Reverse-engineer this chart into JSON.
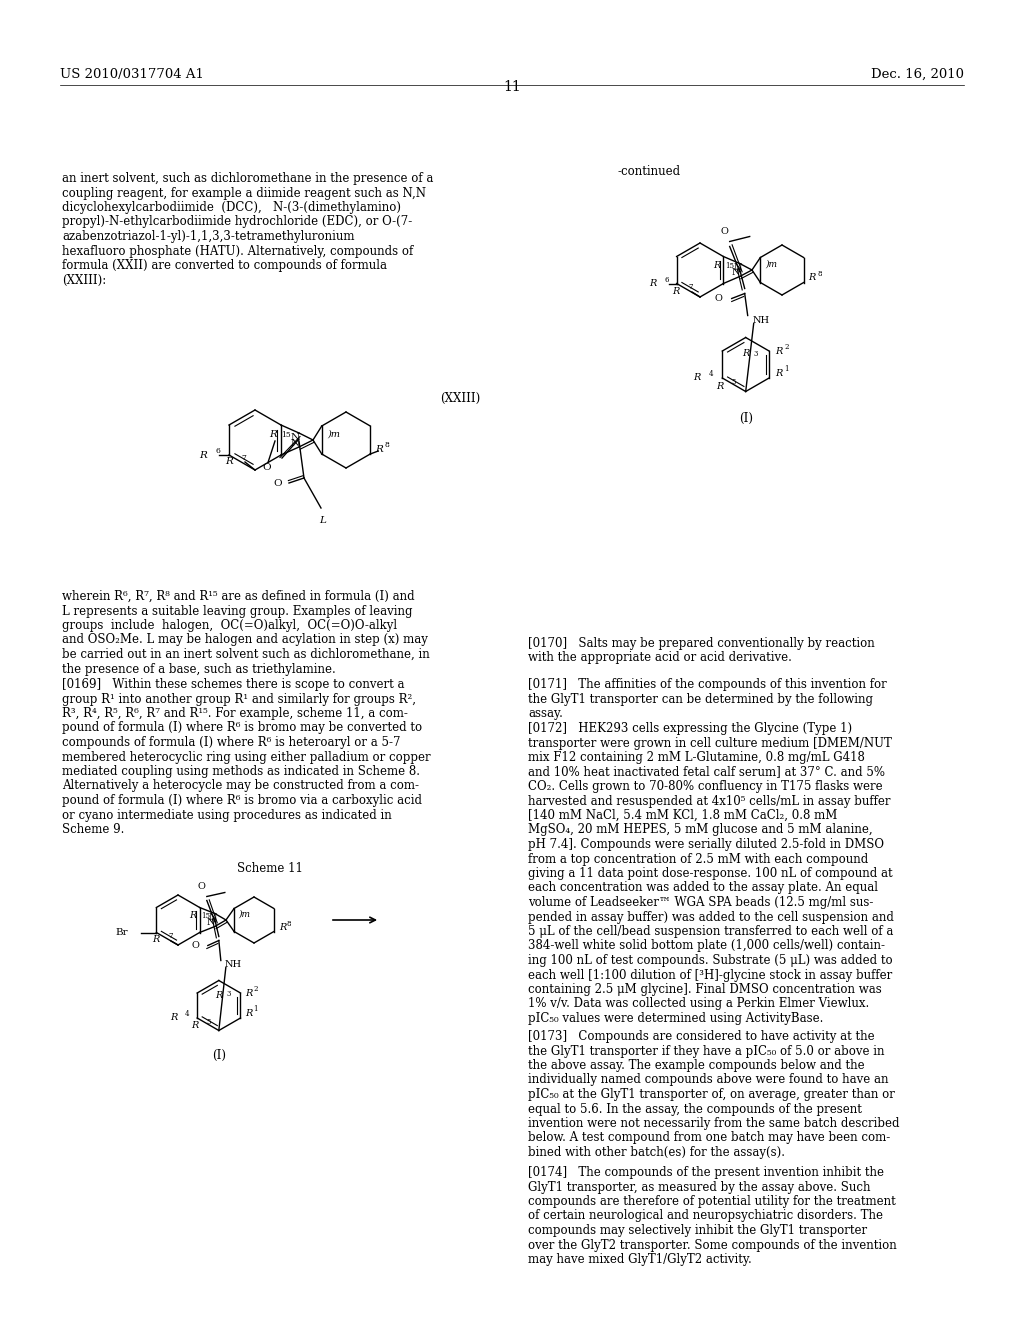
{
  "page_number": "11",
  "patent_number": "US 2010/0317704 A1",
  "patent_date": "Dec. 16, 2010",
  "background_color": "#ffffff"
}
